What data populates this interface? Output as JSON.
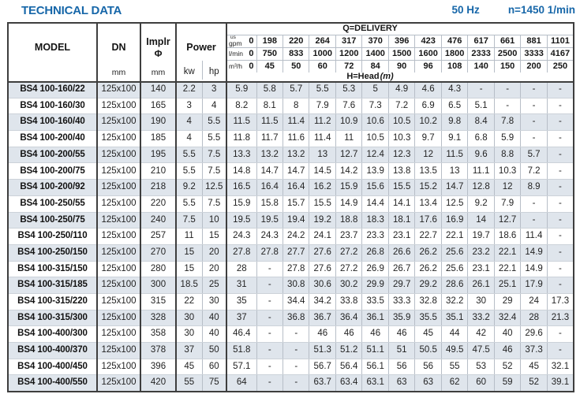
{
  "page": {
    "title": "TECHNICAL DATA",
    "frequency": "50 Hz",
    "speed": "n=1450 1/min"
  },
  "colors": {
    "accent_blue": "#1767a9",
    "stripe_blue": "#dfe5ec",
    "border_dark": "#3e3e3e",
    "border_light": "#b7bec7",
    "row_line": "#ccd2d9"
  },
  "table": {
    "headers": {
      "model": "MODEL",
      "dn": "DN",
      "dn_unit": "mm",
      "implr": "Implr",
      "implr_symbol": "Φ",
      "implr_unit": "mm",
      "power": "Power",
      "power_kw": "kw",
      "power_hp": "hp",
      "delivery_title": "Q=DELIVERY",
      "head_title": "H=Head",
      "head_unit": "(m)",
      "unit_rows": [
        {
          "name": "us-gpm",
          "label_top": "us",
          "label": "gpm",
          "zero": "0",
          "values": [
            "198",
            "220",
            "264",
            "317",
            "370",
            "396",
            "423",
            "476",
            "617",
            "661",
            "881",
            "1101"
          ]
        },
        {
          "name": "l-min",
          "label": "l/min",
          "zero": "0",
          "values": [
            "750",
            "833",
            "1000",
            "1200",
            "1400",
            "1500",
            "1600",
            "1800",
            "2333",
            "2500",
            "3333",
            "4167"
          ]
        },
        {
          "name": "m3-h",
          "label": "m³/h",
          "zero": "0",
          "values": [
            "45",
            "50",
            "60",
            "72",
            "84",
            "90",
            "96",
            "108",
            "140",
            "150",
            "200",
            "250"
          ]
        }
      ]
    },
    "rows": [
      {
        "model": "BS4 100-160/22",
        "dn": "125x100",
        "implr": "140",
        "kw": "2.2",
        "hp": "3",
        "head": [
          "5.9",
          "5.8",
          "5.7",
          "5.5",
          "5.3",
          "5",
          "4.9",
          "4.6",
          "4.3",
          "-",
          "-",
          "-",
          "-"
        ]
      },
      {
        "model": "BS4 100-160/30",
        "dn": "125x100",
        "implr": "165",
        "kw": "3",
        "hp": "4",
        "head": [
          "8.2",
          "8.1",
          "8",
          "7.9",
          "7.6",
          "7.3",
          "7.2",
          "6.9",
          "6.5",
          "5.1",
          "-",
          "-",
          "-"
        ]
      },
      {
        "model": "BS4 100-160/40",
        "dn": "125x100",
        "implr": "190",
        "kw": "4",
        "hp": "5.5",
        "head": [
          "11.5",
          "11.5",
          "11.4",
          "11.2",
          "10.9",
          "10.6",
          "10.5",
          "10.2",
          "9.8",
          "8.4",
          "7.8",
          "-",
          "-"
        ]
      },
      {
        "model": "BS4 100-200/40",
        "dn": "125x100",
        "implr": "185",
        "kw": "4",
        "hp": "5.5",
        "head": [
          "11.8",
          "11.7",
          "11.6",
          "11.4",
          "11",
          "10.5",
          "10.3",
          "9.7",
          "9.1",
          "6.8",
          "5.9",
          "-",
          "-"
        ]
      },
      {
        "model": "BS4 100-200/55",
        "dn": "125x100",
        "implr": "195",
        "kw": "5.5",
        "hp": "7.5",
        "head": [
          "13.3",
          "13.2",
          "13.2",
          "13",
          "12.7",
          "12.4",
          "12.3",
          "12",
          "11.5",
          "9.6",
          "8.8",
          "5.7",
          "-"
        ]
      },
      {
        "model": "BS4 100-200/75",
        "dn": "125x100",
        "implr": "210",
        "kw": "5.5",
        "hp": "7.5",
        "head": [
          "14.8",
          "14.7",
          "14.7",
          "14.5",
          "14.2",
          "13.9",
          "13.8",
          "13.5",
          "13",
          "11.1",
          "10.3",
          "7.2",
          "-"
        ]
      },
      {
        "model": "BS4 100-200/92",
        "dn": "125x100",
        "implr": "218",
        "kw": "9.2",
        "hp": "12.5",
        "head": [
          "16.5",
          "16.4",
          "16.4",
          "16.2",
          "15.9",
          "15.6",
          "15.5",
          "15.2",
          "14.7",
          "12.8",
          "12",
          "8.9",
          "-"
        ]
      },
      {
        "model": "BS4 100-250/55",
        "dn": "125x100",
        "implr": "220",
        "kw": "5.5",
        "hp": "7.5",
        "head": [
          "15.9",
          "15.8",
          "15.7",
          "15.5",
          "14.9",
          "14.4",
          "14.1",
          "13.4",
          "12.5",
          "9.2",
          "7.9",
          "-",
          "-"
        ]
      },
      {
        "model": "BS4 100-250/75",
        "dn": "125x100",
        "implr": "240",
        "kw": "7.5",
        "hp": "10",
        "head": [
          "19.5",
          "19.5",
          "19.4",
          "19.2",
          "18.8",
          "18.3",
          "18.1",
          "17.6",
          "16.9",
          "14",
          "12.7",
          "-",
          "-"
        ]
      },
      {
        "model": "BS4 100-250/110",
        "dn": "125x100",
        "implr": "257",
        "kw": "11",
        "hp": "15",
        "head": [
          "24.3",
          "24.3",
          "24.2",
          "24.1",
          "23.7",
          "23.3",
          "23.1",
          "22.7",
          "22.1",
          "19.7",
          "18.6",
          "11.4",
          "-"
        ]
      },
      {
        "model": "BS4 100-250/150",
        "dn": "125x100",
        "implr": "270",
        "kw": "15",
        "hp": "20",
        "head": [
          "27.8",
          "27.8",
          "27.7",
          "27.6",
          "27.2",
          "26.8",
          "26.6",
          "26.2",
          "25.6",
          "23.2",
          "22.1",
          "14.9",
          "-"
        ]
      },
      {
        "model": "BS4 100-315/150",
        "dn": "125x100",
        "implr": "280",
        "kw": "15",
        "hp": "20",
        "head": [
          "28",
          "-",
          "27.8",
          "27.6",
          "27.2",
          "26.9",
          "26.7",
          "26.2",
          "25.6",
          "23.1",
          "22.1",
          "14.9",
          "-"
        ]
      },
      {
        "model": "BS4 100-315/185",
        "dn": "125x100",
        "implr": "300",
        "kw": "18.5",
        "hp": "25",
        "head": [
          "31",
          "-",
          "30.8",
          "30.6",
          "30.2",
          "29.9",
          "29.7",
          "29.2",
          "28.6",
          "26.1",
          "25.1",
          "17.9",
          "-"
        ]
      },
      {
        "model": "BS4 100-315/220",
        "dn": "125x100",
        "implr": "315",
        "kw": "22",
        "hp": "30",
        "head": [
          "35",
          "-",
          "34.4",
          "34.2",
          "33.8",
          "33.5",
          "33.3",
          "32.8",
          "32.2",
          "30",
          "29",
          "24",
          "17.3"
        ]
      },
      {
        "model": "BS4 100-315/300",
        "dn": "125x100",
        "implr": "328",
        "kw": "30",
        "hp": "40",
        "head": [
          "37",
          "-",
          "36.8",
          "36.7",
          "36.4",
          "36.1",
          "35.9",
          "35.5",
          "35.1",
          "33.2",
          "32.4",
          "28",
          "21.3"
        ]
      },
      {
        "model": "BS4 100-400/300",
        "dn": "125x100",
        "implr": "358",
        "kw": "30",
        "hp": "40",
        "head": [
          "46.4",
          "-",
          "-",
          "46",
          "46",
          "46",
          "46",
          "45",
          "44",
          "42",
          "40",
          "29.6",
          "-"
        ]
      },
      {
        "model": "BS4 100-400/370",
        "dn": "125x100",
        "implr": "378",
        "kw": "37",
        "hp": "50",
        "head": [
          "51.8",
          "-",
          "-",
          "51.3",
          "51.2",
          "51.1",
          "51",
          "50.5",
          "49.5",
          "47.5",
          "46",
          "37.3",
          "-"
        ]
      },
      {
        "model": "BS4 100-400/450",
        "dn": "125x100",
        "implr": "396",
        "kw": "45",
        "hp": "60",
        "head": [
          "57.1",
          "-",
          "-",
          "56.7",
          "56.4",
          "56.1",
          "56",
          "56",
          "55",
          "53",
          "52",
          "45",
          "32.1"
        ]
      },
      {
        "model": "BS4 100-400/550",
        "dn": "125x100",
        "implr": "420",
        "kw": "55",
        "hp": "75",
        "head": [
          "64",
          "-",
          "-",
          "63.7",
          "63.4",
          "63.1",
          "63",
          "63",
          "62",
          "60",
          "59",
          "52",
          "39.1"
        ]
      }
    ]
  }
}
